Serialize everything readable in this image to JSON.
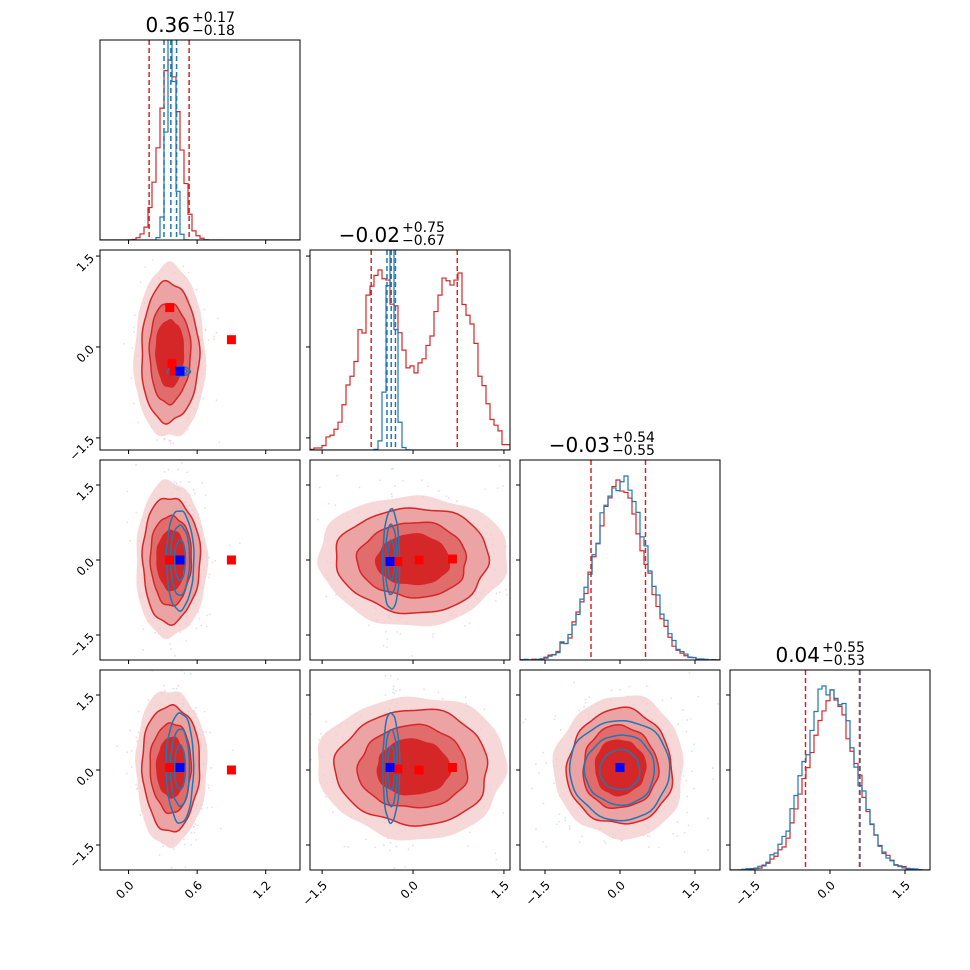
{
  "chart_data": {
    "type": "corner",
    "n_params": 4,
    "colors": {
      "reference": "#1f77b4",
      "posterior": "#d62728",
      "marker_red": "#ff0000",
      "marker_blue": "#0000ff"
    },
    "axes_ranges": [
      [
        -0.25,
        1.5
      ],
      [
        -1.7,
        1.6
      ],
      [
        -2.0,
        2.0
      ],
      [
        -2.0,
        2.0
      ]
    ],
    "x_ticks": [
      {
        "values": [
          0.0,
          0.6,
          1.2
        ],
        "labels": [
          "0.0",
          "0.6",
          "1.2"
        ]
      },
      {
        "values": [
          -1.5,
          0.0,
          1.5
        ],
        "labels": [
          "−1.5",
          "0.0",
          "1.5"
        ]
      },
      {
        "values": [
          -1.5,
          0.0,
          1.5
        ],
        "labels": [
          "−1.5",
          "0.0",
          "1.5"
        ]
      },
      {
        "values": [
          -1.5,
          0.0,
          1.5
        ],
        "labels": [
          "−1.5",
          "0.0",
          "1.5"
        ]
      }
    ],
    "y_ticks": {
      "values": [
        -1.5,
        0.0,
        1.5
      ],
      "labels": [
        "−1.5",
        "0.0",
        "1.5"
      ]
    },
    "titles": [
      {
        "median": "0.36",
        "plus": "+0.17",
        "minus": "−0.18"
      },
      {
        "median": "−0.02",
        "plus": "+0.75",
        "minus": "−0.67"
      },
      {
        "median": "−0.03",
        "plus": "+0.54",
        "minus": "−0.55"
      },
      {
        "median": "0.04",
        "plus": "+0.55",
        "minus": "−0.53"
      }
    ],
    "quantiles_posterior": [
      [
        0.18,
        0.53
      ],
      [
        -0.69,
        0.73
      ],
      [
        -0.58,
        0.51
      ],
      [
        -0.49,
        0.59
      ]
    ],
    "quantiles_reference": [
      [
        0.31,
        0.37,
        0.42
      ],
      [
        -0.43,
        -0.36,
        -0.29
      ],
      [],
      [
        0.6
      ]
    ],
    "hist_1d": [
      {
        "posterior": {
          "type": "normal",
          "mean": 0.36,
          "sd": 0.09
        },
        "reference": {
          "type": "normal",
          "mean": 0.37,
          "sd": 0.035
        }
      },
      {
        "posterior": {
          "type": "mixture",
          "components": [
            [
              0.5,
              -0.55,
              0.35
            ],
            [
              0.5,
              0.65,
              0.35
            ]
          ]
        },
        "reference": {
          "type": "normal",
          "mean": -0.36,
          "sd": 0.07
        }
      },
      {
        "posterior": {
          "type": "normal",
          "mean": -0.03,
          "sd": 0.5
        },
        "reference": {
          "type": "normal",
          "mean": 0.0,
          "sd": 0.5
        }
      },
      {
        "posterior": {
          "type": "normal",
          "mean": 0.04,
          "sd": 0.5
        },
        "reference": {
          "type": "normal",
          "mean": 0.0,
          "sd": 0.5
        }
      }
    ],
    "panels_2d": [
      {
        "row": 1,
        "col": 0,
        "posterior_center": [
          0.36,
          -0.1
        ],
        "posterior_sigma": [
          0.12,
          0.55
        ],
        "reference_center": [
          0.44,
          -0.4
        ],
        "reference_sigma": [
          0.05,
          0.04
        ],
        "red_markers": [
          [
            0.36,
            0.65
          ],
          [
            0.38,
            -0.27
          ],
          [
            0.4,
            -0.4
          ],
          [
            0.9,
            0.12
          ]
        ],
        "blue_marker": [
          0.45,
          -0.4
        ]
      },
      {
        "row": 2,
        "col": 0,
        "posterior_center": [
          0.37,
          0.0
        ],
        "posterior_sigma": [
          0.12,
          0.6
        ],
        "reference_center": [
          0.45,
          0.0
        ],
        "reference_sigma": [
          0.06,
          0.5
        ],
        "red_markers": [
          [
            0.36,
            0.0
          ],
          [
            0.9,
            0.0
          ]
        ],
        "blue_marker": [
          0.45,
          0.0
        ]
      },
      {
        "row": 3,
        "col": 0,
        "posterior_center": [
          0.37,
          0.05
        ],
        "posterior_sigma": [
          0.12,
          0.6
        ],
        "reference_center": [
          0.45,
          0.05
        ],
        "reference_sigma": [
          0.06,
          0.55
        ],
        "red_markers": [
          [
            0.36,
            0.05
          ],
          [
            0.9,
            0.0
          ]
        ],
        "blue_marker": [
          0.45,
          0.05
        ]
      },
      {
        "row": 2,
        "col": 1,
        "posterior_center": [
          0.0,
          0.0
        ],
        "posterior_sigma": [
          0.6,
          0.5
        ],
        "reference_center": [
          -0.36,
          0.0
        ],
        "reference_sigma": [
          0.07,
          0.5
        ],
        "red_markers": [
          [
            -0.25,
            -0.03
          ],
          [
            0.1,
            0.0
          ],
          [
            0.65,
            0.02
          ]
        ],
        "blue_marker": [
          -0.38,
          -0.03
        ]
      },
      {
        "row": 3,
        "col": 1,
        "posterior_center": [
          0.0,
          0.05
        ],
        "posterior_sigma": [
          0.6,
          0.55
        ],
        "reference_center": [
          -0.36,
          0.05
        ],
        "reference_sigma": [
          0.07,
          0.55
        ],
        "red_markers": [
          [
            -0.25,
            0.02
          ],
          [
            0.1,
            0.0
          ],
          [
            0.65,
            0.05
          ]
        ],
        "blue_marker": [
          -0.38,
          0.05
        ]
      },
      {
        "row": 3,
        "col": 2,
        "posterior_center": [
          0.0,
          0.05
        ],
        "posterior_sigma": [
          0.5,
          0.55
        ],
        "reference_center": [
          0.0,
          0.0
        ],
        "reference_sigma": [
          0.5,
          0.5
        ],
        "red_markers": [
          [
            0.0,
            0.05
          ]
        ],
        "blue_marker": [
          0.0,
          0.05
        ]
      }
    ]
  }
}
